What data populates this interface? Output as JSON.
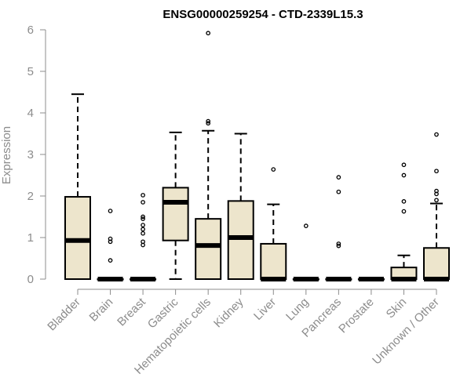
{
  "chart_data": {
    "type": "box",
    "title": "ENSG00000259254 - CTD-2339L15.3",
    "xlabel": "",
    "ylabel": "Expression",
    "ylim": [
      0,
      6
    ],
    "yticks": [
      0,
      1,
      2,
      3,
      4,
      5,
      6
    ],
    "grid": false,
    "box_fill": "#ede5cc",
    "axis_color": "#8c8c8c",
    "categories": [
      "Bladder",
      "Brain",
      "Breast",
      "Gastric",
      "Hematopoietic cells",
      "Kidney",
      "Liver",
      "Lung",
      "Pancreas",
      "Prostate",
      "Skin",
      "Unknown / Other"
    ],
    "boxes": [
      {
        "label": "Bladder",
        "whisker_low": 0,
        "q1": 0,
        "median": 0.93,
        "q3": 1.98,
        "whisker_high": 4.45,
        "outliers": []
      },
      {
        "label": "Brain",
        "whisker_low": 0,
        "q1": 0,
        "median": 0,
        "q3": 0,
        "whisker_high": 0,
        "outliers": [
          0.45,
          0.9,
          0.97,
          1.64
        ]
      },
      {
        "label": "Breast",
        "whisker_low": 0,
        "q1": 0,
        "median": 0,
        "q3": 0,
        "whisker_high": 0,
        "outliers": [
          0.82,
          0.9,
          1.1,
          1.2,
          1.3,
          1.45,
          1.5,
          1.85,
          2.02
        ]
      },
      {
        "label": "Gastric",
        "whisker_low": 0,
        "q1": 0.93,
        "median": 1.85,
        "q3": 2.2,
        "whisker_high": 3.53,
        "outliers": []
      },
      {
        "label": "Hematopoietic cells",
        "whisker_low": 0,
        "q1": 0,
        "median": 0.81,
        "q3": 1.45,
        "whisker_high": 3.57,
        "outliers": [
          3.75,
          3.8,
          5.92
        ]
      },
      {
        "label": "Kidney",
        "whisker_low": 0,
        "q1": 0,
        "median": 1.0,
        "q3": 1.88,
        "whisker_high": 3.5,
        "outliers": []
      },
      {
        "label": "Liver",
        "whisker_low": 0,
        "q1": 0,
        "median": 0,
        "q3": 0.85,
        "whisker_high": 1.8,
        "outliers": [
          2.64
        ]
      },
      {
        "label": "Lung",
        "whisker_low": 0,
        "q1": 0,
        "median": 0,
        "q3": 0,
        "whisker_high": 0,
        "outliers": [
          1.28
        ]
      },
      {
        "label": "Pancreas",
        "whisker_low": 0,
        "q1": 0,
        "median": 0,
        "q3": 0,
        "whisker_high": 0,
        "outliers": [
          0.8,
          0.85,
          2.1,
          2.45
        ]
      },
      {
        "label": "Prostate",
        "whisker_low": 0,
        "q1": 0,
        "median": 0,
        "q3": 0,
        "whisker_high": 0,
        "outliers": []
      },
      {
        "label": "Skin",
        "whisker_low": 0,
        "q1": 0,
        "median": 0,
        "q3": 0.28,
        "whisker_high": 0.57,
        "outliers": [
          1.63,
          1.87,
          2.5,
          2.75
        ]
      },
      {
        "label": "Unknown / Other",
        "whisker_low": 0,
        "q1": 0,
        "median": 0,
        "q3": 0.75,
        "whisker_high": 1.82,
        "outliers": [
          1.9,
          2.05,
          2.12,
          2.6,
          3.48
        ]
      }
    ]
  }
}
